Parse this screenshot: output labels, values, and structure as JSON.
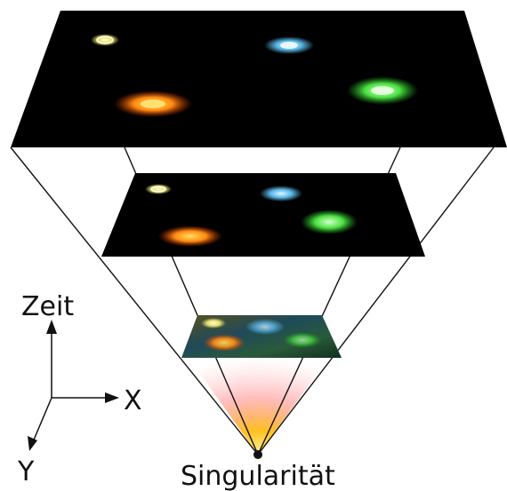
{
  "labels": {
    "time_axis": "Zeit",
    "x_axis": "X",
    "y_axis": "Y",
    "singularity": "Singularität"
  },
  "planes": [
    {
      "name": "largest-universe-slice",
      "galaxies": [
        {
          "color": "yellow",
          "hex": "#e8e070"
        },
        {
          "color": "blue",
          "hex": "#5ab8e8"
        },
        {
          "color": "orange",
          "hex": "#ff8a10"
        },
        {
          "color": "green",
          "hex": "#4ae040"
        }
      ]
    },
    {
      "name": "middle-universe-slice",
      "galaxies": [
        {
          "color": "yellow",
          "hex": "#e8e070"
        },
        {
          "color": "blue",
          "hex": "#5ab8e8"
        },
        {
          "color": "orange",
          "hex": "#ff8a10"
        },
        {
          "color": "green",
          "hex": "#4ae040"
        }
      ]
    },
    {
      "name": "small-early-universe-slice",
      "galaxies": [
        {
          "color": "yellow",
          "hex": "#e8e070"
        },
        {
          "color": "blue",
          "hex": "#5ab8e8"
        },
        {
          "color": "orange",
          "hex": "#ff8a10"
        },
        {
          "color": "green",
          "hex": "#4ae040"
        }
      ]
    }
  ],
  "colors": {
    "plane_fill": "#000000",
    "line": "#111111",
    "glow_inner": "#ffd020",
    "glow_outer": "#ff7070"
  }
}
